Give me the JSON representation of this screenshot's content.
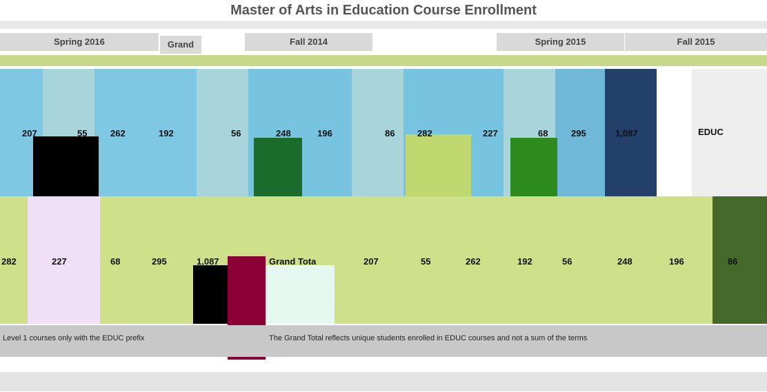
{
  "title": "Master of Arts in Education Course Enrollment",
  "headers": [
    "Spring 2016",
    "Grand",
    "Fall 2014",
    "Spring 2015",
    "Fall 2015"
  ],
  "row1": {
    "values": [
      "207",
      "55",
      "262",
      "192",
      "56",
      "248",
      "196",
      "86",
      "282",
      "227",
      "68",
      "295",
      "1,087"
    ],
    "label": "EDUC"
  },
  "row2": {
    "values_left": [
      "282",
      "227",
      "68",
      "295",
      "1,087"
    ],
    "label": "Grand Tota",
    "values_right": [
      "207",
      "55",
      "262",
      "192",
      "56",
      "248",
      "196",
      "86"
    ]
  },
  "footer": [
    "Level 1 courses only with the EDUC prefix",
    "The Grand Total reflects unique students enrolled in EDUC courses and not a sum of the terms"
  ]
}
